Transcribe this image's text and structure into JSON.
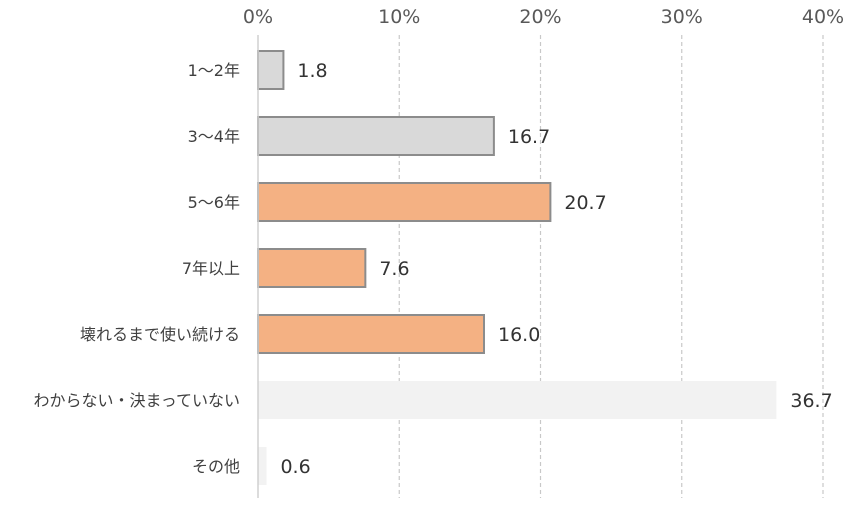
{
  "chart_data": {
    "type": "bar",
    "orientation": "horizontal",
    "xlim": [
      0,
      40
    ],
    "x_ticks": [
      "0%",
      "10%",
      "20%",
      "30%",
      "40%"
    ],
    "grid": true,
    "categories": [
      "1～2年",
      "3～4年",
      "5～6年",
      "7年以上",
      "壊れるまで使い続ける",
      "わからない・決まっていない",
      "その他"
    ],
    "values": [
      1.8,
      16.7,
      20.7,
      7.6,
      16.0,
      36.7,
      0.6
    ],
    "value_labels": [
      "1.8",
      "16.7",
      "20.7",
      "7.6",
      "16.0",
      "36.7",
      "0.6"
    ],
    "bar_colors": [
      "#d9d9d9",
      "#d9d9d9",
      "#f4b183",
      "#f4b183",
      "#f4b183",
      "#f2f2f2",
      "#f2f2f2"
    ],
    "bar_borders": [
      "#8c8c8c",
      "#8c8c8c",
      "#8c8c8c",
      "#8c8c8c",
      "#8c8c8c",
      "none",
      "none"
    ]
  }
}
